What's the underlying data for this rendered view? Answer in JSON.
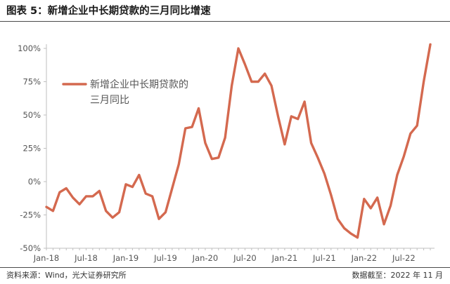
{
  "header": {
    "title": "图表 5：新增企业中长期贷款的三月同比增速"
  },
  "footer": {
    "source": "资料来源：Wind，光大证券研究所",
    "date": "数据截至：2022 年 11 月"
  },
  "colors": {
    "series": "#D4694F",
    "axis": "#bfbfbf",
    "text": "#555555"
  },
  "chart_data": {
    "type": "line",
    "title": "",
    "xlabel": "",
    "ylabel": "",
    "ylim": [
      -50,
      100
    ],
    "yticks": [
      -50,
      -25,
      0,
      25,
      50,
      75,
      100
    ],
    "ytick_labels": [
      "-50%",
      "-25%",
      "0%",
      "25%",
      "50%",
      "75%",
      "100%"
    ],
    "xtick_labels": [
      "Jan-18",
      "Jul-18",
      "Jan-19",
      "Jul-19",
      "Jan-20",
      "Jul-20",
      "Jan-21",
      "Jul-21",
      "Jan-22",
      "Jul-22"
    ],
    "xtick_indices": [
      0,
      6,
      12,
      18,
      24,
      30,
      36,
      42,
      48,
      54
    ],
    "grid": false,
    "legend_position": "top-left",
    "series": [
      {
        "name": "新增企业中长期贷款的三月同比",
        "legend_lines": [
          "新增企业中长期贷款的",
          "三月同比"
        ],
        "values": [
          -19,
          -22,
          -8,
          -5,
          -12,
          -17,
          -11,
          -11,
          -7,
          -22,
          -27,
          -23,
          -2,
          -4,
          5,
          -9,
          -11,
          -28,
          -23,
          -5,
          13,
          40,
          41,
          55,
          29,
          17,
          18,
          33,
          72,
          100,
          88,
          75,
          75,
          81,
          72,
          49,
          28,
          49,
          47,
          60,
          29,
          18,
          6,
          -10,
          -28,
          -35,
          -39,
          -42,
          -13,
          -20,
          -12,
          -32,
          -18,
          5,
          19,
          36,
          42,
          75,
          103
        ]
      }
    ]
  }
}
